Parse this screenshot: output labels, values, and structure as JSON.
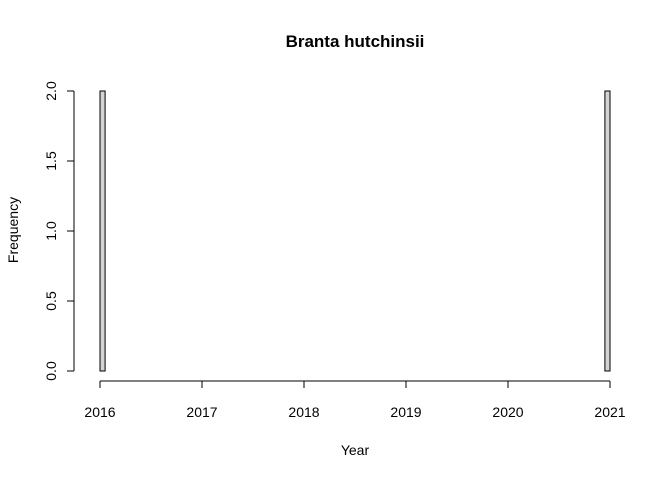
{
  "chart_data": {
    "type": "bar",
    "title": "Branta hutchinsii",
    "xlabel": "Year",
    "ylabel": "Frequency",
    "xlim": [
      2016,
      2021
    ],
    "ylim": [
      0,
      2
    ],
    "x_ticks": [
      2016,
      2017,
      2018,
      2019,
      2020,
      2021
    ],
    "x_tick_labels": [
      "2016",
      "2017",
      "2018",
      "2019",
      "2020",
      "2021"
    ],
    "y_ticks": [
      0,
      0.5,
      1,
      1.5,
      2
    ],
    "y_tick_labels": [
      "0.0",
      "0.5",
      "1.0",
      "1.5",
      "2.0"
    ],
    "bin_width": 0.05,
    "bins": [
      {
        "start": 2016.0,
        "end": 2016.05,
        "count": 2
      },
      {
        "start": 2020.95,
        "end": 2021.0,
        "count": 2
      }
    ],
    "bar_color": "#d3d3d3",
    "border_color": "#000000",
    "grid": false
  }
}
